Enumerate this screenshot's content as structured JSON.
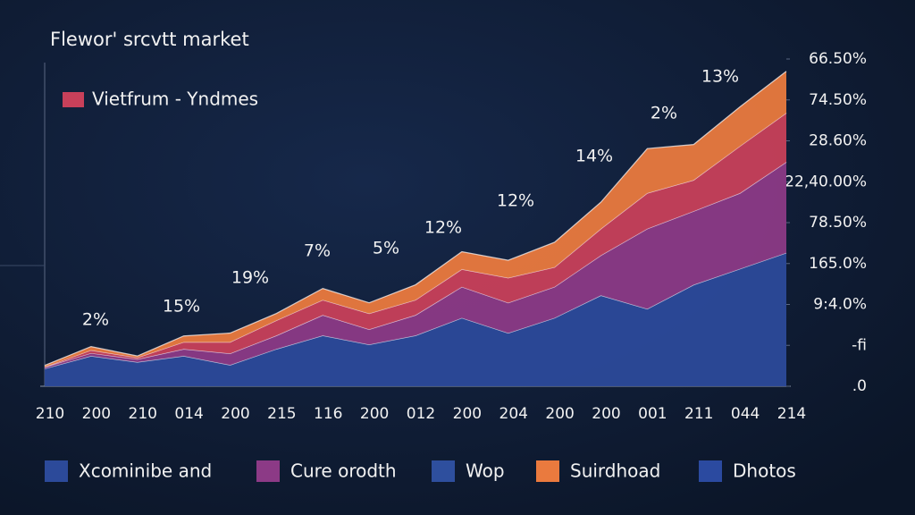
{
  "chart_data": {
    "type": "stacked-area",
    "title": "Flewor' srcvtt market",
    "categories": [
      "210",
      "200",
      "210",
      "014",
      "200",
      "215",
      "116",
      "200",
      "012",
      "200",
      "204",
      "200",
      "200",
      "001",
      "211",
      "044",
      "214"
    ],
    "series": [
      {
        "name": "Xcominibe and",
        "color": "#2c4a9a",
        "values": [
          0.43,
          0.74,
          0.59,
          0.74,
          0.52,
          0.91,
          1.24,
          1.02,
          1.24,
          1.67,
          1.3,
          1.67,
          2.22,
          1.89,
          2.48,
          2.87,
          3.26
        ]
      },
      {
        "name": "Cure orodth",
        "color": "#8c3a86",
        "values": [
          0.04,
          0.07,
          0.07,
          0.17,
          0.28,
          0.33,
          0.5,
          0.37,
          0.5,
          0.76,
          0.74,
          0.76,
          0.98,
          1.96,
          1.8,
          1.85,
          2.22
        ]
      },
      {
        "name": "Vietfrum  - Yndmes",
        "color": "#c8405a",
        "values": [
          0.0,
          0.07,
          0.04,
          0.17,
          0.28,
          0.37,
          0.37,
          0.39,
          0.37,
          0.43,
          0.61,
          0.48,
          0.65,
          0.87,
          0.76,
          1.15,
          1.2
        ]
      },
      {
        "name": "Suirdhoad",
        "color": "#ea7a3e",
        "values": [
          0.04,
          0.09,
          0.04,
          0.15,
          0.22,
          0.17,
          0.28,
          0.26,
          0.37,
          0.43,
          0.43,
          0.61,
          0.65,
          1.09,
          0.87,
          0.96,
          1.02
        ]
      }
    ],
    "legend_extra": [
      {
        "name": "Wop",
        "color": "#2e4f9e"
      },
      {
        "name": "Dhotos",
        "color": "#2b4aa0"
      }
    ],
    "annotations": [
      "2%",
      "15%",
      "19%",
      "7%",
      "5%",
      "12%",
      "12%",
      "14%",
      "2%",
      "13%"
    ],
    "ylim": [
      0,
      8
    ],
    "yticks": [
      {
        "value": 0,
        "label": ".0"
      },
      {
        "value": 1,
        "label": "-fi"
      },
      {
        "value": 2,
        "label": "9:4.0%"
      },
      {
        "value": 3,
        "label": "165.0%"
      },
      {
        "value": 4,
        "label": "78.50%"
      },
      {
        "value": 5,
        "label": "22,40.00%"
      },
      {
        "value": 6,
        "label": "28.60%"
      },
      {
        "value": 7,
        "label": "74.50%"
      },
      {
        "value": 8,
        "label": "66.50%"
      }
    ]
  }
}
